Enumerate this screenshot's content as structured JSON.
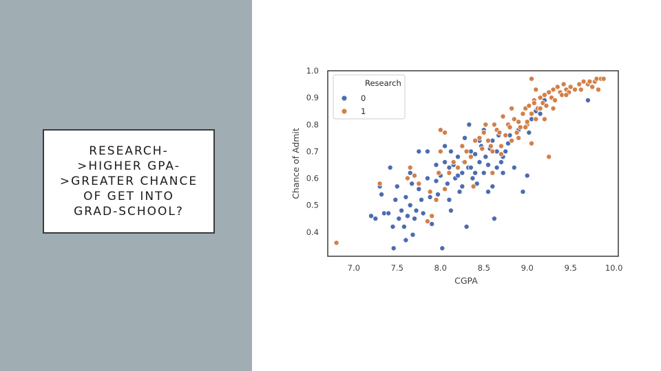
{
  "colors": {
    "left_panel": "#a0adb3",
    "research_0": "#4c6cb0",
    "research_1": "#d47f49",
    "axes": "#2b2b2b",
    "tick_text": "#3d3d3d"
  },
  "slide": {
    "title": "RESEARCH-\n>HIGHER GPA-\n>GREATER CHANCE\nOF GET INTO\nGRAD-SCHOOL?"
  },
  "chart_data": {
    "type": "scatter",
    "title": "",
    "xlabel": "CGPA",
    "ylabel": "Chance of Admit",
    "xlim": [
      6.7,
      10.05
    ],
    "ylim": [
      0.31,
      1.0
    ],
    "x_ticks": [
      7.0,
      7.5,
      8.0,
      8.5,
      9.0,
      9.5,
      10.0
    ],
    "x_tick_labels": [
      "7.0",
      "7.5",
      "8.0",
      "8.5",
      "9.0",
      "9.5",
      "10.0"
    ],
    "y_ticks": [
      0.4,
      0.5,
      0.6,
      0.7,
      0.8,
      0.9,
      1.0
    ],
    "y_tick_labels": [
      "0.4",
      "0.5",
      "0.6",
      "0.7",
      "0.8",
      "0.9",
      "1.0"
    ],
    "grid": false,
    "legend": {
      "title": "Research",
      "placement": "top-left",
      "entries": [
        "0",
        "1"
      ]
    },
    "series": [
      {
        "name": "0",
        "points": [
          [
            7.2,
            0.46
          ],
          [
            7.25,
            0.45
          ],
          [
            7.3,
            0.57
          ],
          [
            7.32,
            0.54
          ],
          [
            7.35,
            0.47
          ],
          [
            7.4,
            0.47
          ],
          [
            7.45,
            0.42
          ],
          [
            7.42,
            0.64
          ],
          [
            7.48,
            0.52
          ],
          [
            7.5,
            0.57
          ],
          [
            7.52,
            0.45
          ],
          [
            7.55,
            0.48
          ],
          [
            7.58,
            0.42
          ],
          [
            7.6,
            0.53
          ],
          [
            7.62,
            0.46
          ],
          [
            7.65,
            0.5
          ],
          [
            7.67,
            0.58
          ],
          [
            7.68,
            0.39
          ],
          [
            7.7,
            0.45
          ],
          [
            7.46,
            0.34
          ],
          [
            7.6,
            0.37
          ],
          [
            7.72,
            0.48
          ],
          [
            7.75,
            0.56
          ],
          [
            7.78,
            0.52
          ],
          [
            7.8,
            0.47
          ],
          [
            7.85,
            0.6
          ],
          [
            7.88,
            0.53
          ],
          [
            7.9,
            0.43
          ],
          [
            7.95,
            0.59
          ],
          [
            7.97,
            0.54
          ],
          [
            8.0,
            0.61
          ],
          [
            8.02,
            0.34
          ],
          [
            8.05,
            0.66
          ],
          [
            8.08,
            0.58
          ],
          [
            8.1,
            0.64
          ],
          [
            8.12,
            0.48
          ],
          [
            8.15,
            0.65
          ],
          [
            8.17,
            0.6
          ],
          [
            8.2,
            0.68
          ],
          [
            8.22,
            0.55
          ],
          [
            8.25,
            0.62
          ],
          [
            8.27,
            0.66
          ],
          [
            8.3,
            0.42
          ],
          [
            8.32,
            0.64
          ],
          [
            8.35,
            0.7
          ],
          [
            8.37,
            0.6
          ],
          [
            8.4,
            0.69
          ],
          [
            8.42,
            0.58
          ],
          [
            8.45,
            0.66
          ],
          [
            8.47,
            0.72
          ],
          [
            8.5,
            0.62
          ],
          [
            8.52,
            0.68
          ],
          [
            8.55,
            0.65
          ],
          [
            8.57,
            0.71
          ],
          [
            8.6,
            0.57
          ],
          [
            8.62,
            0.45
          ],
          [
            8.65,
            0.7
          ],
          [
            8.67,
            0.76
          ],
          [
            8.7,
            0.66
          ],
          [
            8.72,
            0.68
          ],
          [
            8.75,
            0.7
          ],
          [
            8.78,
            0.73
          ],
          [
            8.8,
            0.76
          ],
          [
            8.85,
            0.64
          ],
          [
            8.9,
            0.78
          ],
          [
            8.95,
            0.55
          ],
          [
            9.0,
            0.61
          ],
          [
            9.02,
            0.77
          ],
          [
            9.05,
            0.82
          ],
          [
            9.1,
            0.85
          ],
          [
            9.15,
            0.84
          ],
          [
            9.2,
            0.89
          ],
          [
            9.7,
            0.89
          ],
          [
            8.05,
            0.72
          ],
          [
            8.12,
            0.7
          ],
          [
            8.2,
            0.61
          ],
          [
            8.28,
            0.75
          ],
          [
            8.33,
            0.8
          ],
          [
            8.4,
            0.62
          ],
          [
            8.45,
            0.74
          ],
          [
            8.5,
            0.78
          ],
          [
            8.55,
            0.55
          ],
          [
            7.95,
            0.65
          ],
          [
            7.85,
            0.7
          ],
          [
            7.75,
            0.7
          ],
          [
            7.65,
            0.62
          ],
          [
            8.1,
            0.52
          ],
          [
            8.25,
            0.57
          ],
          [
            8.35,
            0.64
          ],
          [
            8.6,
            0.74
          ],
          [
            8.65,
            0.64
          ],
          [
            8.72,
            0.62
          ]
        ]
      },
      {
        "name": "1",
        "points": [
          [
            6.8,
            0.36
          ],
          [
            7.3,
            0.58
          ],
          [
            7.65,
            0.64
          ],
          [
            7.7,
            0.61
          ],
          [
            7.75,
            0.58
          ],
          [
            7.85,
            0.44
          ],
          [
            7.9,
            0.46
          ],
          [
            7.95,
            0.52
          ],
          [
            8.0,
            0.7
          ],
          [
            8.05,
            0.56
          ],
          [
            8.1,
            0.62
          ],
          [
            8.15,
            0.66
          ],
          [
            8.2,
            0.64
          ],
          [
            8.25,
            0.72
          ],
          [
            8.3,
            0.7
          ],
          [
            8.35,
            0.68
          ],
          [
            8.4,
            0.74
          ],
          [
            8.45,
            0.75
          ],
          [
            8.5,
            0.77
          ],
          [
            8.55,
            0.74
          ],
          [
            8.6,
            0.7
          ],
          [
            8.62,
            0.8
          ],
          [
            8.65,
            0.78
          ],
          [
            8.7,
            0.72
          ],
          [
            8.72,
            0.83
          ],
          [
            8.75,
            0.76
          ],
          [
            8.78,
            0.8
          ],
          [
            8.8,
            0.79
          ],
          [
            8.82,
            0.74
          ],
          [
            8.85,
            0.82
          ],
          [
            8.88,
            0.77
          ],
          [
            8.9,
            0.81
          ],
          [
            8.92,
            0.79
          ],
          [
            8.95,
            0.84
          ],
          [
            8.98,
            0.86
          ],
          [
            9.0,
            0.8
          ],
          [
            9.02,
            0.87
          ],
          [
            9.05,
            0.84
          ],
          [
            9.08,
            0.89
          ],
          [
            9.1,
            0.82
          ],
          [
            9.12,
            0.86
          ],
          [
            9.15,
            0.9
          ],
          [
            9.18,
            0.88
          ],
          [
            9.2,
            0.91
          ],
          [
            9.22,
            0.87
          ],
          [
            9.25,
            0.92
          ],
          [
            9.28,
            0.9
          ],
          [
            9.3,
            0.93
          ],
          [
            9.32,
            0.89
          ],
          [
            9.35,
            0.94
          ],
          [
            9.38,
            0.92
          ],
          [
            9.4,
            0.91
          ],
          [
            9.42,
            0.95
          ],
          [
            9.45,
            0.93
          ],
          [
            9.48,
            0.92
          ],
          [
            9.5,
            0.94
          ],
          [
            9.55,
            0.93
          ],
          [
            9.6,
            0.95
          ],
          [
            9.62,
            0.93
          ],
          [
            9.65,
            0.96
          ],
          [
            9.7,
            0.95
          ],
          [
            9.72,
            0.96
          ],
          [
            9.75,
            0.94
          ],
          [
            9.78,
            0.96
          ],
          [
            9.8,
            0.97
          ],
          [
            9.82,
            0.93
          ],
          [
            9.85,
            0.97
          ],
          [
            9.88,
            0.97
          ],
          [
            9.25,
            0.68
          ],
          [
            9.05,
            0.73
          ],
          [
            8.98,
            0.79
          ],
          [
            9.05,
            0.97
          ],
          [
            9.08,
            0.88
          ],
          [
            8.0,
            0.78
          ],
          [
            8.05,
            0.77
          ],
          [
            8.2,
            0.64
          ],
          [
            8.28,
            0.66
          ],
          [
            8.48,
            0.71
          ],
          [
            8.52,
            0.8
          ],
          [
            8.58,
            0.72
          ],
          [
            8.68,
            0.77
          ],
          [
            8.82,
            0.86
          ],
          [
            8.9,
            0.75
          ],
          [
            9.1,
            0.93
          ],
          [
            9.15,
            0.86
          ],
          [
            9.2,
            0.82
          ],
          [
            7.62,
            0.6
          ],
          [
            7.98,
            0.62
          ],
          [
            7.88,
            0.55
          ],
          [
            8.38,
            0.57
          ],
          [
            8.6,
            0.62
          ],
          [
            8.7,
            0.69
          ],
          [
            9.0,
            0.81
          ],
          [
            9.3,
            0.86
          ],
          [
            9.45,
            0.91
          ]
        ]
      }
    ]
  }
}
